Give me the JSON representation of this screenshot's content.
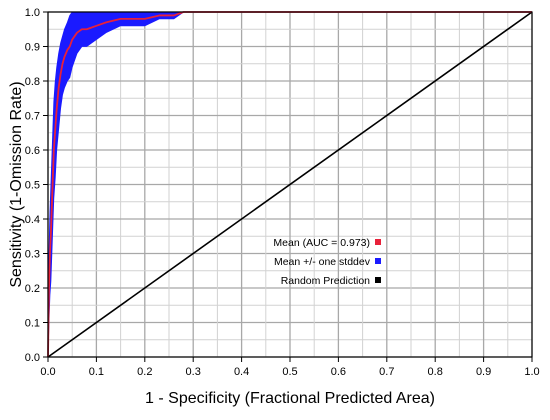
{
  "chart_data": {
    "type": "line",
    "xlabel": "1 - Specificity (Fractional Predicted Area)",
    "ylabel": "Sensitivity (1-Omission Rate)",
    "xlim": [
      0,
      1
    ],
    "ylim": [
      0,
      1
    ],
    "grid": true,
    "legend_position": "lower-center",
    "xticks": [
      "0.0",
      "0.1",
      "0.2",
      "0.3",
      "0.4",
      "0.5",
      "0.6",
      "0.7",
      "0.8",
      "0.9",
      "1.0"
    ],
    "yticks": [
      "0.0",
      "0.1",
      "0.2",
      "0.3",
      "0.4",
      "0.5",
      "0.6",
      "0.7",
      "0.8",
      "0.9",
      "1.0"
    ],
    "series": [
      {
        "name": "Mean (AUC = 0.973)",
        "color": "#e8213a",
        "x": [
          0,
          0.002,
          0.004,
          0.006,
          0.008,
          0.01,
          0.012,
          0.015,
          0.018,
          0.022,
          0.026,
          0.03,
          0.034,
          0.04,
          0.045,
          0.05,
          0.06,
          0.07,
          0.08,
          0.1,
          0.12,
          0.15,
          0.18,
          0.2,
          0.23,
          0.26,
          0.28,
          0.29,
          1.0
        ],
        "y": [
          0,
          0.2,
          0.3,
          0.36,
          0.44,
          0.52,
          0.6,
          0.66,
          0.72,
          0.78,
          0.82,
          0.85,
          0.87,
          0.89,
          0.9,
          0.92,
          0.94,
          0.95,
          0.95,
          0.96,
          0.97,
          0.98,
          0.98,
          0.98,
          0.99,
          0.99,
          1.0,
          1.0,
          1.0
        ]
      },
      {
        "name": "Mean +/- one stddev",
        "color": "#1a1aff",
        "x": [
          0,
          0.002,
          0.004,
          0.006,
          0.008,
          0.01,
          0.012,
          0.015,
          0.018,
          0.022,
          0.026,
          0.03,
          0.034,
          0.04,
          0.045,
          0.05,
          0.06,
          0.07,
          0.08,
          0.1,
          0.12,
          0.15,
          0.18,
          0.2,
          0.23,
          0.26,
          0.28,
          0.29,
          1.0
        ],
        "upper": [
          0,
          0.3,
          0.42,
          0.5,
          0.58,
          0.66,
          0.74,
          0.8,
          0.84,
          0.88,
          0.91,
          0.93,
          0.95,
          0.97,
          0.99,
          1.0,
          1.0,
          1.0,
          1.0,
          1.0,
          1.0,
          1.0,
          1.0,
          1.0,
          1.0,
          1.0,
          1.0,
          1.0,
          1.0
        ],
        "lower": [
          0,
          0.1,
          0.18,
          0.22,
          0.3,
          0.38,
          0.46,
          0.52,
          0.6,
          0.66,
          0.72,
          0.76,
          0.78,
          0.8,
          0.81,
          0.84,
          0.88,
          0.9,
          0.9,
          0.92,
          0.94,
          0.96,
          0.96,
          0.96,
          0.98,
          0.98,
          1.0,
          1.0,
          1.0
        ]
      },
      {
        "name": "Random Prediction",
        "color": "#000000",
        "x": [
          0,
          1
        ],
        "y": [
          0,
          1
        ]
      }
    ]
  }
}
